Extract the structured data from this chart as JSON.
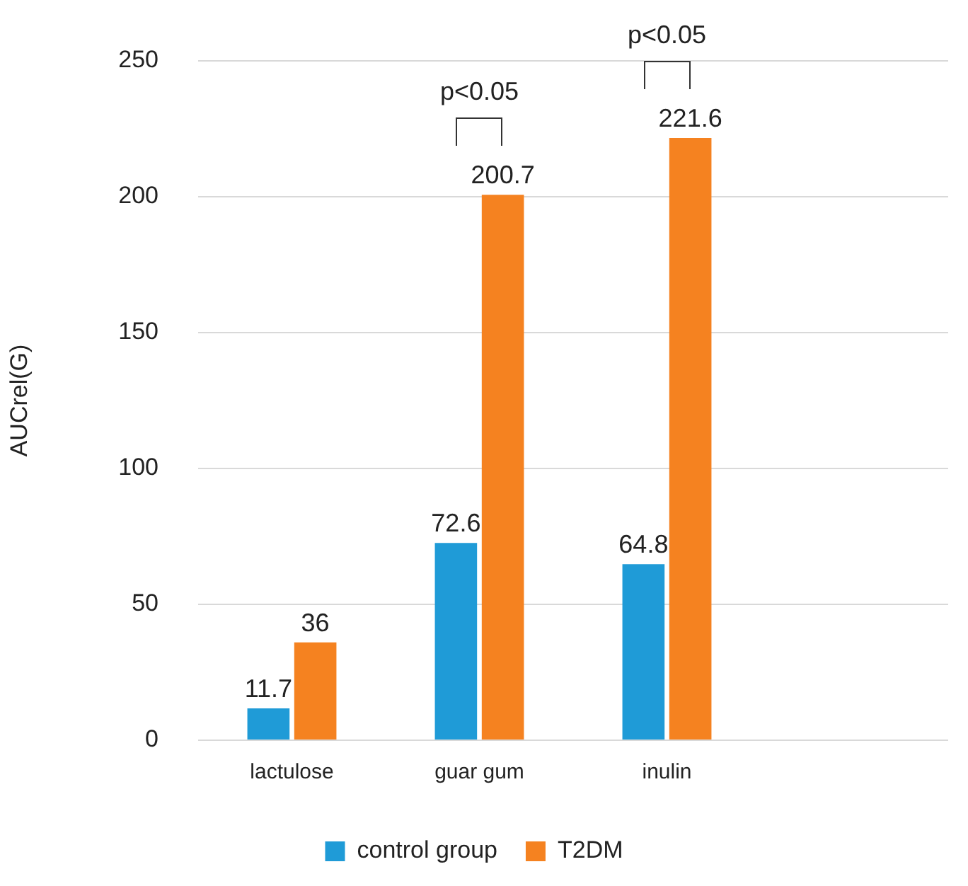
{
  "chart_data": {
    "type": "bar",
    "ylabel": "AUCrel(G)",
    "categories": [
      "lactulose",
      "guar gum",
      "inulin",
      null
    ],
    "series": [
      {
        "name": "control group",
        "color": "#1f9bd7",
        "values": [
          11.7,
          72.6,
          64.8,
          null
        ]
      },
      {
        "name": "T2DM",
        "color": "#f58220",
        "values": [
          36,
          200.7,
          221.6,
          null
        ]
      }
    ],
    "ylim": [
      0,
      250
    ],
    "yticks": [
      0,
      50,
      100,
      150,
      200,
      250
    ],
    "grid": "y",
    "legend": "bottom",
    "data_labels": true,
    "annotations": [
      "p<0.05",
      "p<0.05"
    ]
  }
}
